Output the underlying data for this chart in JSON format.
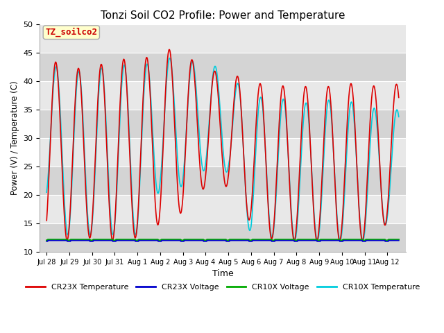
{
  "title": "Tonzi Soil CO2 Profile: Power and Temperature",
  "xlabel": "Time",
  "ylabel": "Power (V) / Temperature (C)",
  "ylim": [
    10,
    50
  ],
  "xlim": [
    -0.3,
    15.8
  ],
  "xtick_labels": [
    "Jul 28",
    "Jul 29",
    "Jul 30",
    "Jul 31",
    "Aug 1",
    "Aug 2",
    "Aug 3",
    "Aug 4",
    "Aug 5",
    "Aug 6",
    "Aug 7",
    "Aug 8",
    "Aug 9",
    "Aug 10",
    "Aug 11",
    "Aug 12"
  ],
  "xtick_positions": [
    0,
    1,
    2,
    3,
    4,
    5,
    6,
    7,
    8,
    9,
    10,
    11,
    12,
    13,
    14,
    15
  ],
  "ytick_positions": [
    10,
    15,
    20,
    25,
    30,
    35,
    40,
    45,
    50
  ],
  "annotation_text": "TZ_soilco2",
  "annotation_color": "#cc0000",
  "annotation_bg": "#ffffcc",
  "band_colors": [
    "#d8d8d8",
    "#e8e8e8"
  ],
  "grid_color": "#ffffff",
  "cr23x_temp_color": "#dd0000",
  "cr23x_volt_color": "#0000cc",
  "cr10x_volt_color": "#00aa00",
  "cr10x_temp_color": "#00ccdd",
  "legend_labels": [
    "CR23X Temperature",
    "CR23X Voltage",
    "CR10X Voltage",
    "CR10X Temperature"
  ],
  "peaks_23x": [
    44.0,
    42.5,
    42.0,
    44.5,
    43.0,
    46.0,
    45.0,
    42.0,
    41.5,
    40.0,
    39.0,
    39.5,
    38.5,
    40.0,
    39.0,
    39.5
  ],
  "troughs_23x": [
    12.5,
    12.0,
    12.5,
    12.0,
    12.5,
    15.0,
    17.0,
    21.5,
    21.5,
    15.0,
    12.0,
    12.0,
    12.0,
    12.0,
    12.0,
    15.0
  ],
  "peaks_10x": [
    43.0,
    42.0,
    41.5,
    43.5,
    42.0,
    44.5,
    43.5,
    43.5,
    41.5,
    37.0,
    37.5,
    36.0,
    36.5,
    37.0,
    35.5,
    35.0
  ],
  "troughs_10x": [
    19.0,
    12.5,
    13.0,
    13.0,
    13.0,
    21.0,
    21.5,
    24.5,
    24.0,
    13.0,
    12.5,
    12.0,
    12.0,
    12.0,
    12.0,
    15.0
  ]
}
